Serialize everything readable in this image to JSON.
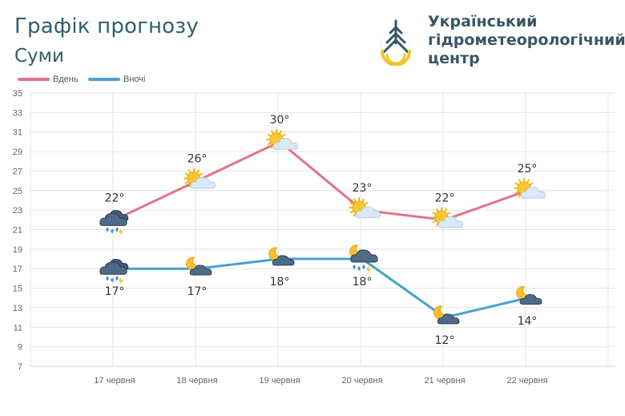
{
  "header": {
    "title": "Графік прогнозу",
    "city": "Суми",
    "org_line1": "Український",
    "org_line2": "гідрометеорологічний",
    "org_line3": "центр"
  },
  "logo_icon": "droplet-logo-icon",
  "colors": {
    "day": "#e37388",
    "night": "#45a2d1",
    "grid": "#e4e4e4",
    "text": "#2f5f6b"
  },
  "chart_data": {
    "type": "line",
    "categories": [
      "17 червня",
      "18 червня",
      "19 червня",
      "20 червня",
      "21 червня",
      "22 червня"
    ],
    "series": [
      {
        "name": "Вдень",
        "values": [
          22,
          26,
          30,
          23,
          22,
          25
        ],
        "labels": [
          "22°",
          "26°",
          "30°",
          "23°",
          "22°",
          "25°"
        ],
        "icons": [
          "storm-rain-icon",
          "sun-cloud-icon",
          "sun-cloud-icon",
          "sun-cloud-icon",
          "sun-cloud-icon",
          "sun-cloud-icon"
        ]
      },
      {
        "name": "Вночі",
        "values": [
          17,
          17,
          18,
          18,
          12,
          14
        ],
        "labels": [
          "17°",
          "17°",
          "18°",
          "18°",
          "12°",
          "14°"
        ],
        "icons": [
          "storm-rain-icon",
          "moon-cloud-icon",
          "moon-cloud-icon",
          "moon-rain-icon",
          "moon-cloud-icon",
          "moon-cloud-icon"
        ]
      }
    ],
    "ylim": [
      7,
      35
    ],
    "yticks": [
      7,
      9,
      11,
      13,
      15,
      17,
      19,
      21,
      23,
      25,
      27,
      29,
      31,
      33,
      35
    ],
    "xlabel": "",
    "ylabel": "",
    "grid": true,
    "legend": "top-left"
  }
}
